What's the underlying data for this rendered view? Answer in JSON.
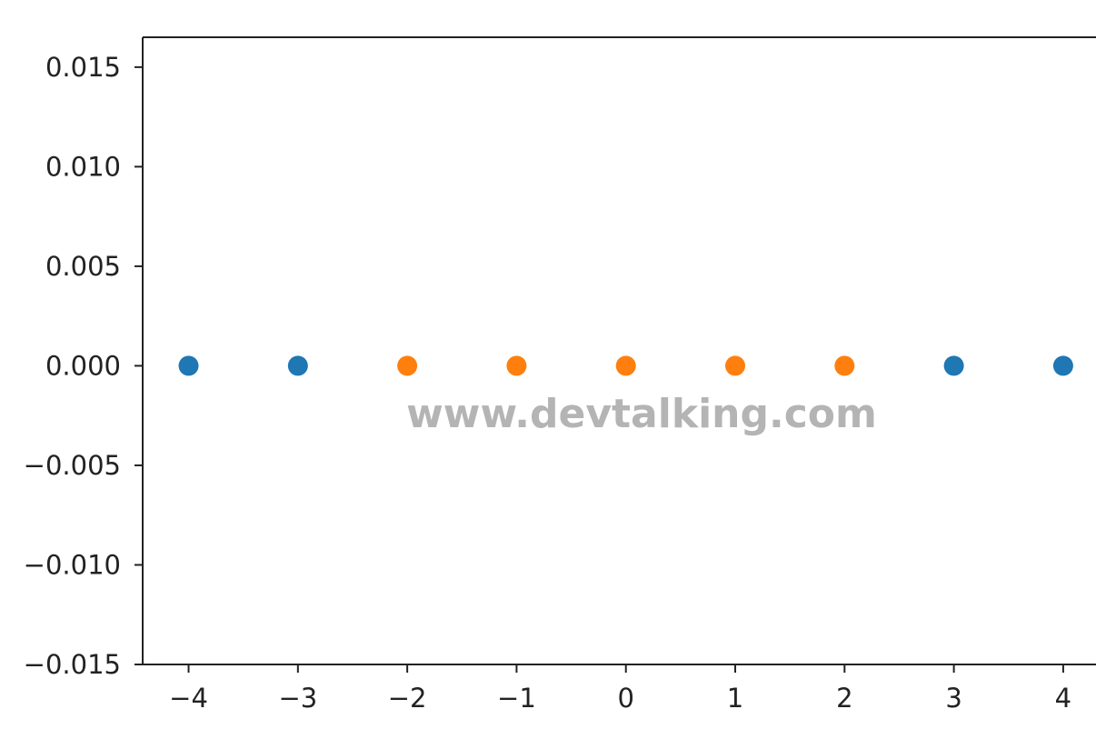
{
  "chart_data": {
    "type": "scatter",
    "xlim": [
      -4.42,
      4.3
    ],
    "ylim": [
      -0.015,
      0.0165
    ],
    "x_ticks": [
      -4,
      -3,
      -2,
      -1,
      0,
      1,
      2,
      3,
      4
    ],
    "x_tick_labels": [
      "−4",
      "−3",
      "−2",
      "−1",
      "0",
      "1",
      "2",
      "3",
      "4"
    ],
    "y_ticks": [
      0.015,
      0.01,
      0.005,
      0.0,
      -0.005,
      -0.01,
      -0.015
    ],
    "y_tick_labels": [
      "0.015",
      "0.010",
      "0.005",
      "0.000",
      "−0.005",
      "−0.010",
      "−0.015"
    ],
    "grid": false,
    "series": [
      {
        "color": "#1f77b4",
        "x": [
          -4,
          -3,
          3,
          4
        ],
        "y": [
          0,
          0,
          0,
          0
        ]
      },
      {
        "color": "#ff7f0e",
        "x": [
          -2,
          -1,
          0,
          1,
          2
        ],
        "y": [
          0,
          0,
          0,
          0,
          0
        ]
      }
    ]
  },
  "watermark": "www.devtalking.com",
  "colors": {
    "axis": "#222222",
    "watermark": "#b4b4b4"
  }
}
